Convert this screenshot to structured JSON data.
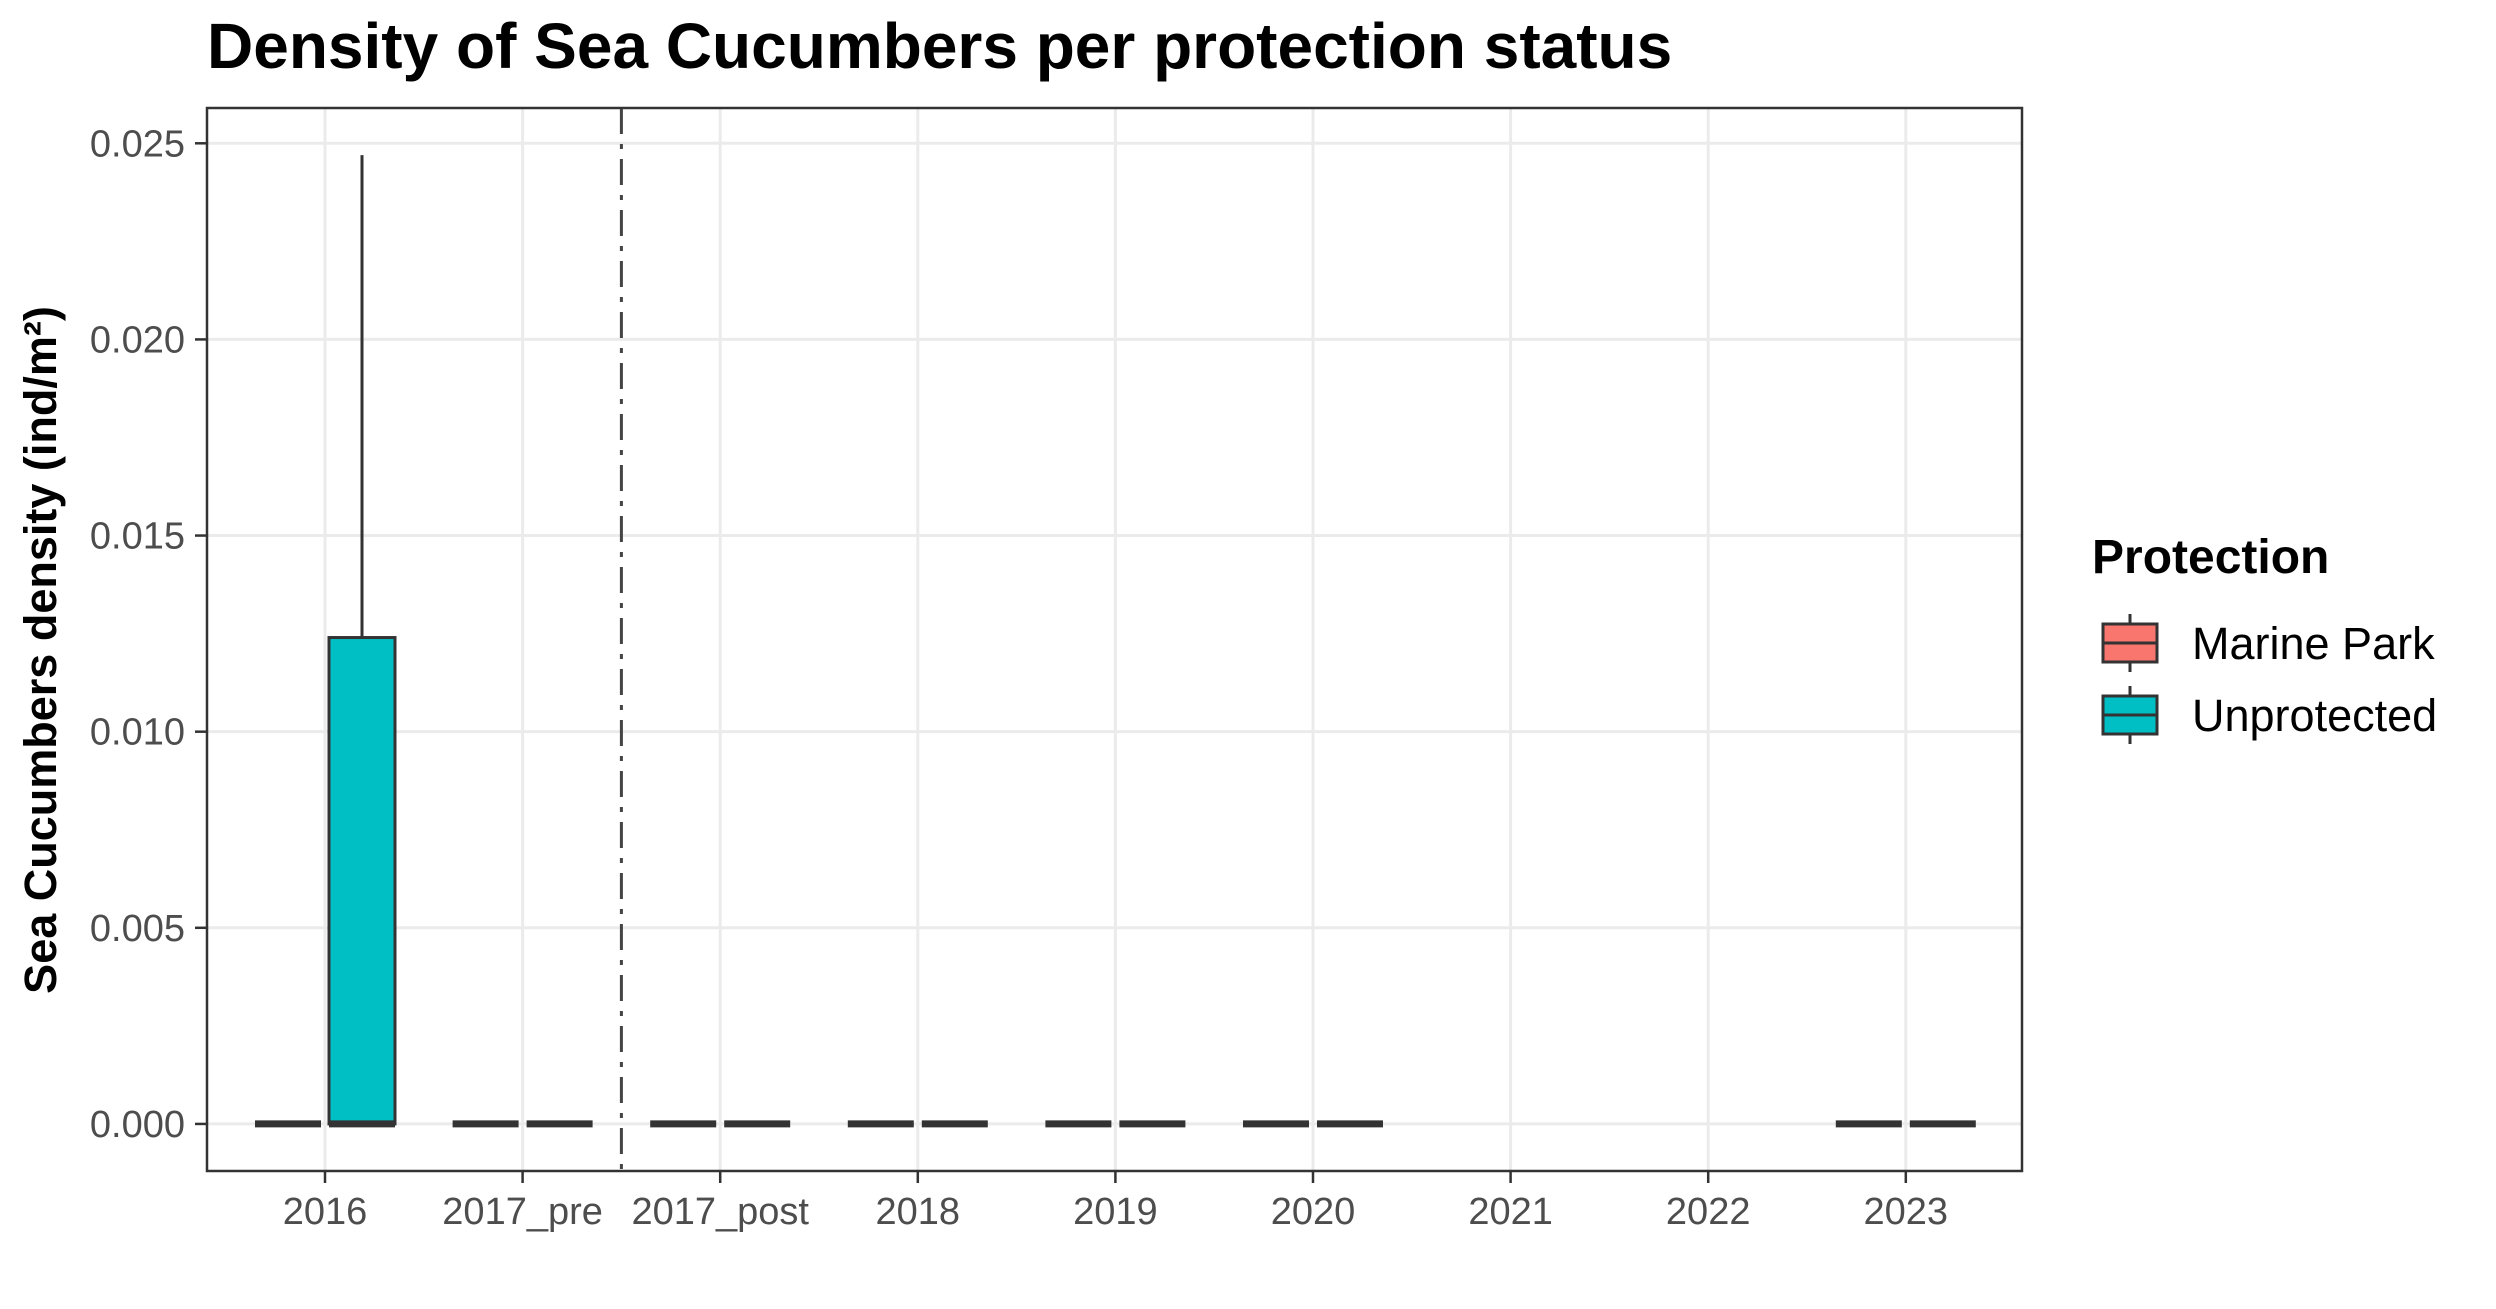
{
  "chart_data": {
    "type": "boxplot",
    "title": "Density of Sea Cucumbers per protection status",
    "xlabel": "",
    "ylabel": "Sea Cucumbers density (ind/m²)",
    "categories": [
      "2016",
      "2017_pre",
      "2017_post",
      "2018",
      "2019",
      "2020",
      "2021",
      "2022",
      "2023"
    ],
    "ylim": [
      -0.0012,
      0.0259
    ],
    "yticks": [
      0.0,
      0.005,
      0.01,
      0.015,
      0.02,
      0.025
    ],
    "ytick_labels": [
      "0.000",
      "0.005",
      "0.010",
      "0.015",
      "0.020",
      "0.025"
    ],
    "grid": true,
    "legend_position": "right",
    "vline": {
      "between": [
        "2017_pre",
        "2017_post"
      ],
      "style": "dashdot"
    },
    "legend": {
      "title": "Protection",
      "entries": [
        "Marine Park",
        "Unprotected"
      ]
    },
    "series": [
      {
        "name": "Marine Park",
        "color": "#F8766D",
        "boxes": [
          {
            "category": "2016",
            "min": 0,
            "q1": 0,
            "median": 0,
            "q3": 0,
            "max": 0
          },
          {
            "category": "2017_pre",
            "min": 0,
            "q1": 0,
            "median": 0,
            "q3": 0,
            "max": 0
          },
          {
            "category": "2017_post",
            "min": 0,
            "q1": 0,
            "median": 0,
            "q3": 0,
            "max": 0
          },
          {
            "category": "2018",
            "min": 0,
            "q1": 0,
            "median": 0,
            "q3": 0,
            "max": 0
          },
          {
            "category": "2019",
            "min": 0,
            "q1": 0,
            "median": 0,
            "q3": 0,
            "max": 0
          },
          {
            "category": "2020",
            "min": 0,
            "q1": 0,
            "median": 0,
            "q3": 0,
            "max": 0
          },
          {
            "category": "2023",
            "min": 0,
            "q1": 0,
            "median": 0,
            "q3": 0,
            "max": 0
          }
        ]
      },
      {
        "name": "Unprotected",
        "color": "#00BFC4",
        "boxes": [
          {
            "category": "2016",
            "min": 0,
            "q1": 0,
            "median": 0,
            "q3": 0.0124,
            "max": 0.0247
          },
          {
            "category": "2017_pre",
            "min": 0,
            "q1": 0,
            "median": 0,
            "q3": 0,
            "max": 0
          },
          {
            "category": "2017_post",
            "min": 0,
            "q1": 0,
            "median": 0,
            "q3": 0,
            "max": 0
          },
          {
            "category": "2018",
            "min": 0,
            "q1": 0,
            "median": 0,
            "q3": 0,
            "max": 0
          },
          {
            "category": "2019",
            "min": 0,
            "q1": 0,
            "median": 0,
            "q3": 0,
            "max": 0
          },
          {
            "category": "2020",
            "min": 0,
            "q1": 0,
            "median": 0,
            "q3": 0,
            "max": 0
          },
          {
            "category": "2023",
            "min": 0,
            "q1": 0,
            "median": 0,
            "q3": 0,
            "max": 0
          }
        ]
      }
    ]
  }
}
